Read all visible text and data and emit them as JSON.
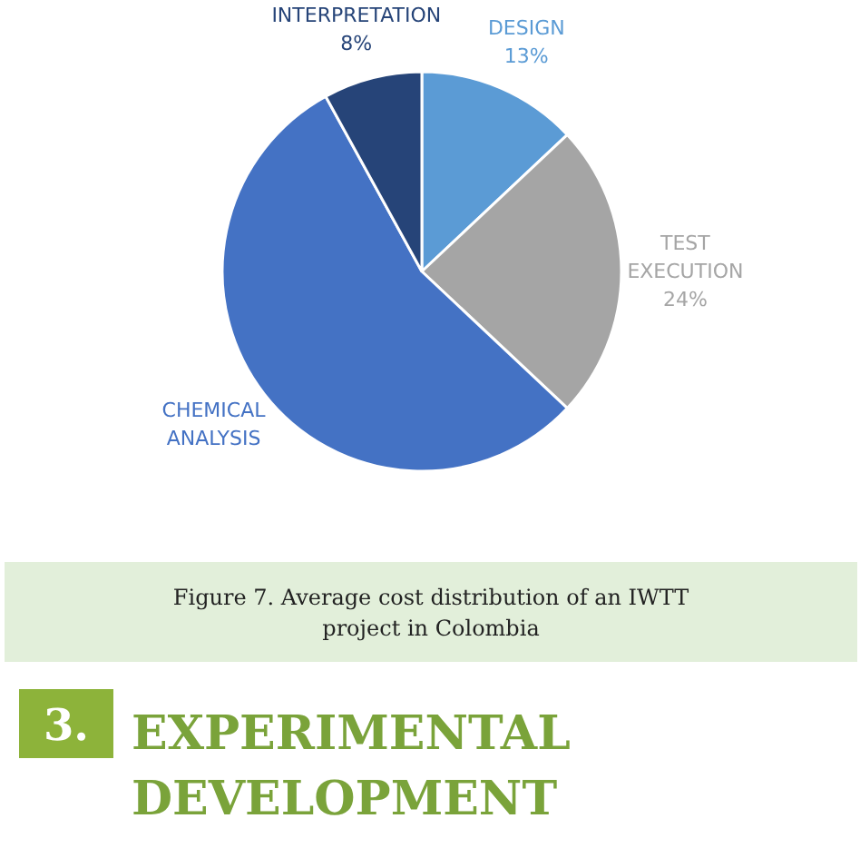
{
  "chart_data": {
    "type": "pie",
    "categories": [
      "DESIGN",
      "TEST EXECUTION",
      "CHEMICAL ANALYSIS",
      "INTERPRETATION"
    ],
    "values": [
      13,
      24,
      55,
      8
    ],
    "colors": [
      "#5b9bd5",
      "#a5a5a5",
      "#4472c4",
      "#264478"
    ],
    "value_labels": [
      "13%",
      "24%",
      null,
      "8%"
    ],
    "annotations": [
      "Figure 7. Average cost distribution of an IWTT project in Colombia",
      "3. EXPERIMENTAL DEVELOPMENT"
    ]
  }
}
